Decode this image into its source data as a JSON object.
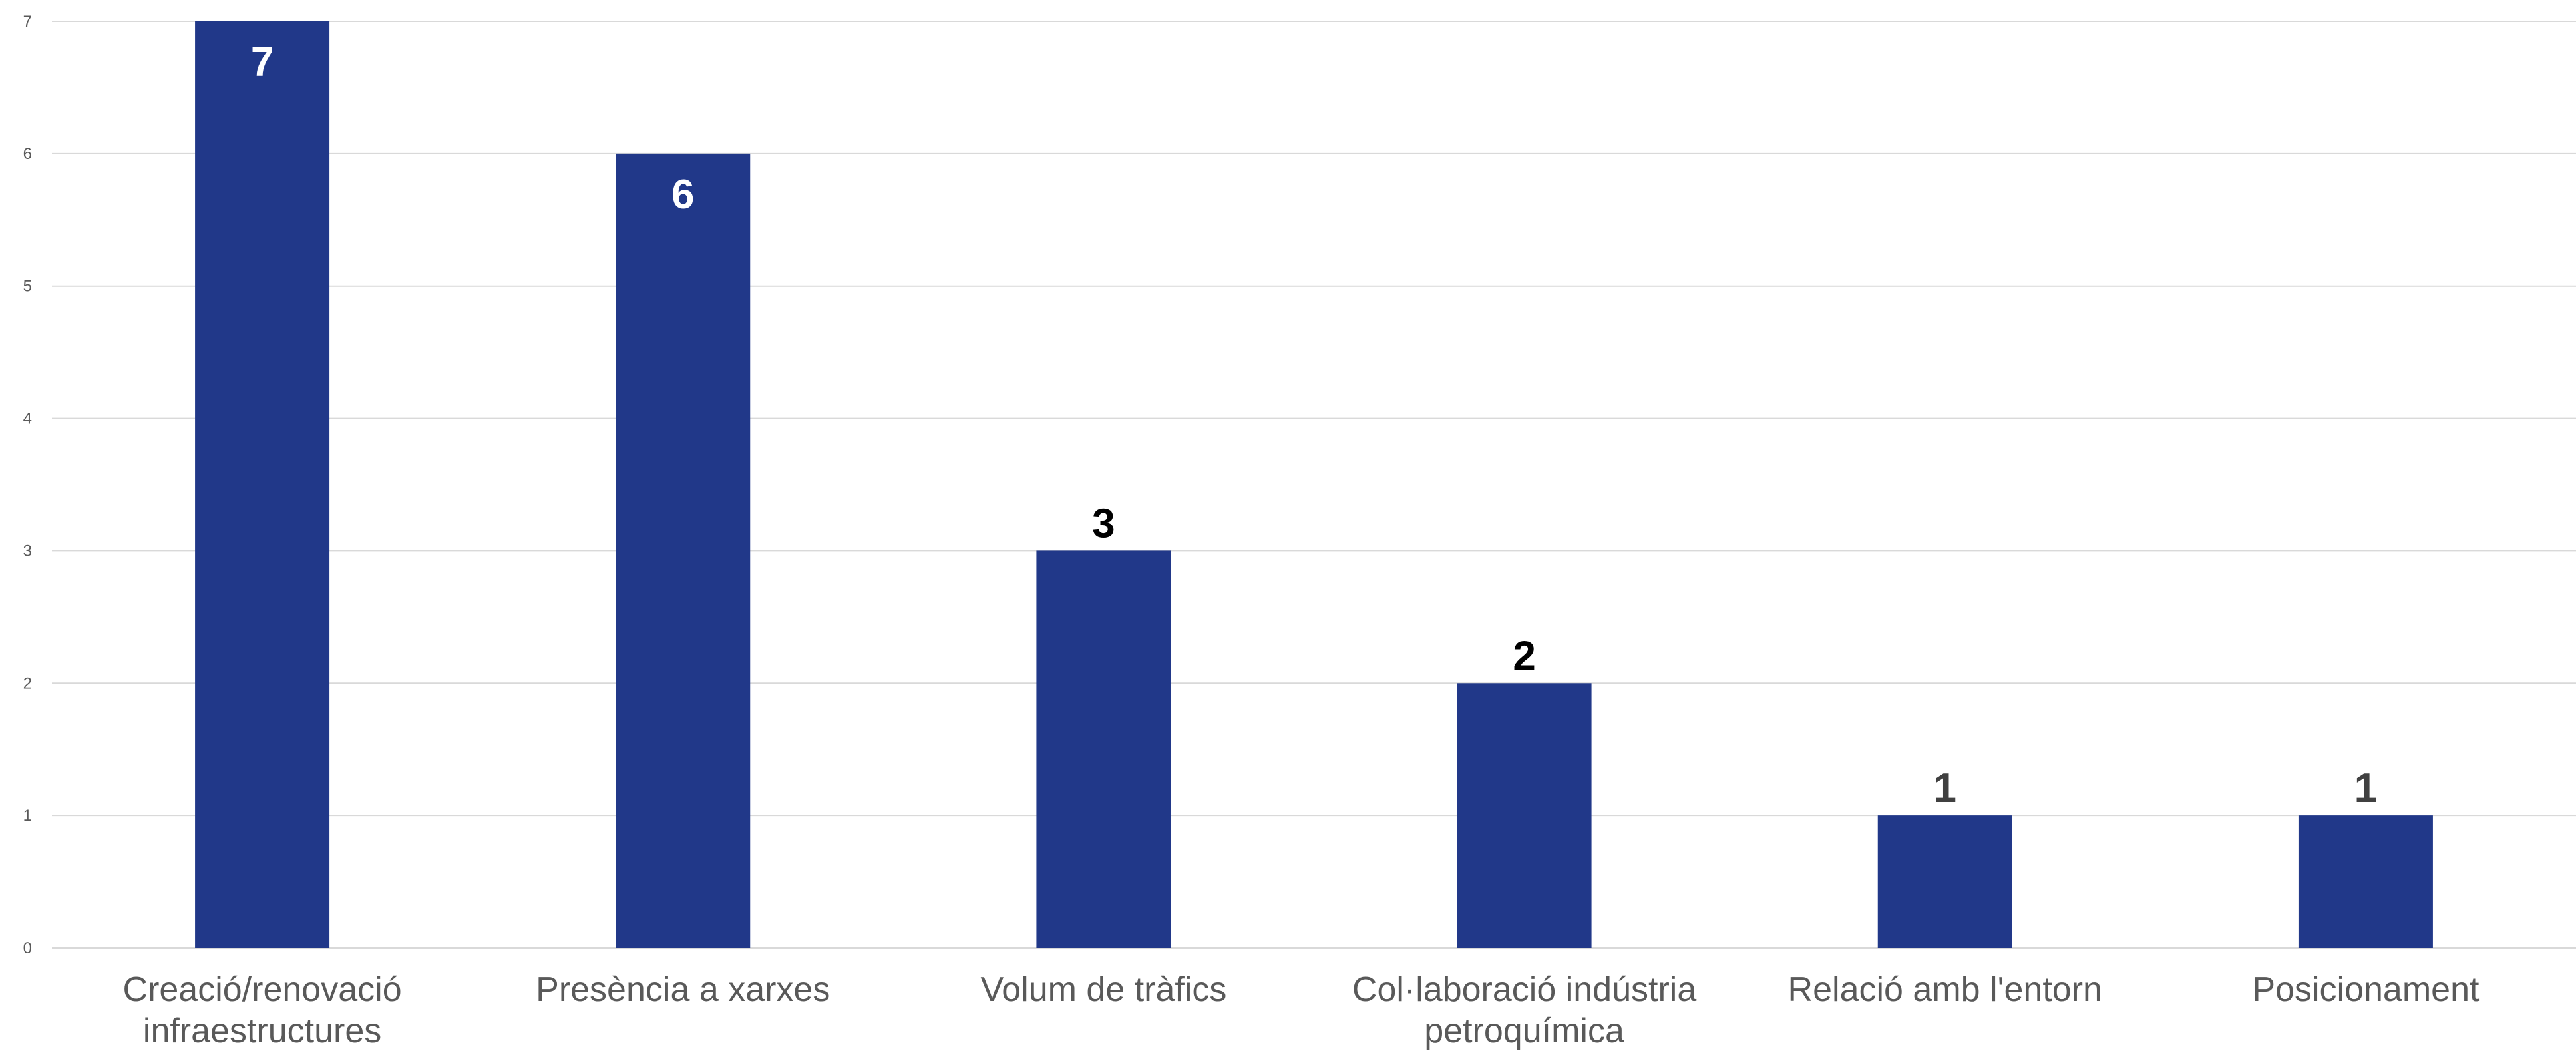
{
  "chart_data": {
    "type": "bar",
    "categories": [
      [
        "Creació/renovació",
        "infraestructures"
      ],
      [
        "Presència a xarxes"
      ],
      [
        "Volum de tràfics"
      ],
      [
        "Col·laboració indústria",
        "petroquímica"
      ],
      [
        "Relació amb l'entorn"
      ],
      [
        "Posicionament"
      ]
    ],
    "values": [
      7,
      6,
      3,
      2,
      1,
      1
    ],
    "data_labels": [
      "7",
      "6",
      "3",
      "2",
      "1",
      "1"
    ],
    "yticks": [
      "0",
      "1",
      "2",
      "3",
      "4",
      "5",
      "6",
      "7"
    ],
    "ylim": [
      0,
      7
    ],
    "grid": true,
    "legend": "none",
    "bar_color": "#213889",
    "grid_color": "#d9d9d9",
    "label_inside_color": "#ffffff",
    "label_outside_colors": [
      "#000000",
      "#000000",
      "#000000",
      "#000000",
      "#404040",
      "#404040"
    ]
  }
}
